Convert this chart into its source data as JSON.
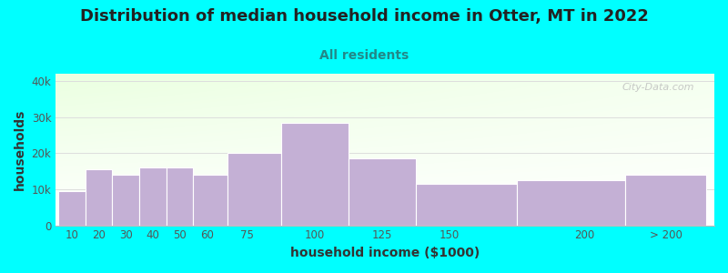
{
  "title": "Distribution of median household income in Otter, MT in 2022",
  "subtitle": "All residents",
  "xlabel": "household income ($1000)",
  "ylabel": "households",
  "background_color": "#00FFFF",
  "bar_color": "#C4B0D5",
  "bar_edge_color": "#FFFFFF",
  "categories": [
    "10",
    "20",
    "30",
    "40",
    "50",
    "60",
    "75",
    "100",
    "125",
    "150",
    "200",
    "> 200"
  ],
  "values": [
    9500,
    15500,
    14000,
    16000,
    16000,
    14000,
    20000,
    28500,
    18500,
    11500,
    12500,
    14000
  ],
  "yticks": [
    0,
    10000,
    20000,
    30000,
    40000
  ],
  "ytick_labels": [
    "0",
    "10k",
    "20k",
    "30k",
    "40k"
  ],
  "ylim": [
    0,
    42000
  ],
  "title_fontsize": 13,
  "subtitle_fontsize": 10,
  "axis_label_fontsize": 10,
  "tick_fontsize": 8.5,
  "watermark_text": "City-Data.com",
  "title_color": "#222222",
  "subtitle_color": "#228888",
  "axis_label_color": "#333333",
  "tick_color": "#555555",
  "grid_color": "#DDDDDD",
  "tick_positions": [
    10,
    20,
    30,
    40,
    50,
    60,
    75,
    100,
    125,
    150,
    200,
    230
  ]
}
